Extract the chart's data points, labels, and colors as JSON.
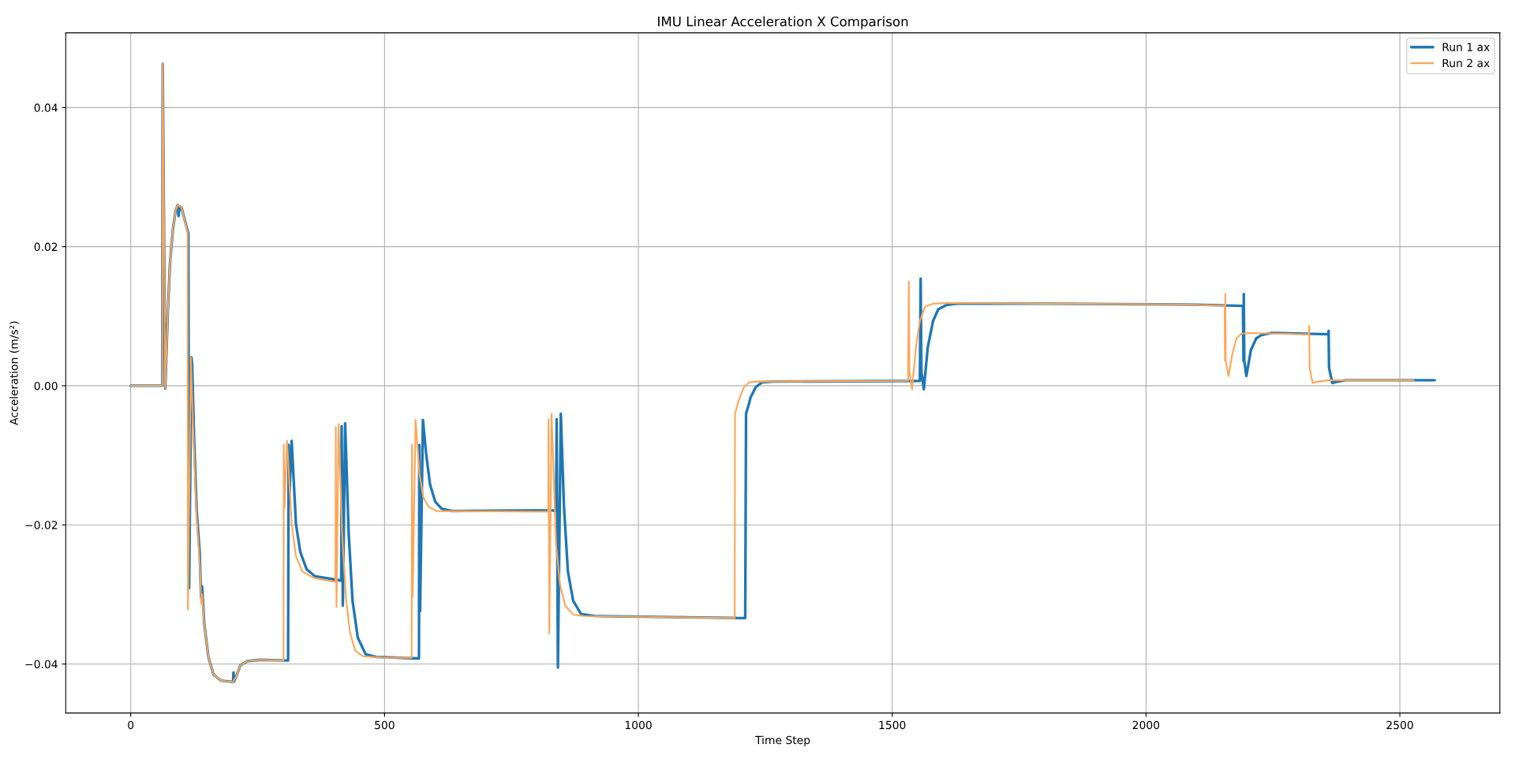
{
  "chart_data": {
    "type": "line",
    "title": "IMU Linear Acceleration X Comparison",
    "xlabel": "Time Step",
    "ylabel": "Acceleration (m/s²)",
    "xlim": [
      -128,
      2697
    ],
    "xticks": [
      0,
      500,
      1000,
      1500,
      2000,
      2500
    ],
    "ylim": [
      -0.04705,
      0.05075
    ],
    "yticks": [
      {
        "value": -0.04,
        "label": "−0.04"
      },
      {
        "value": -0.02,
        "label": "−0.02"
      },
      {
        "value": 0.0,
        "label": "0.00"
      },
      {
        "value": 0.02,
        "label": "0.02"
      },
      {
        "value": 0.04,
        "label": "0.04"
      }
    ],
    "grid": true,
    "legend": "top right",
    "line_style": "solid",
    "series": [
      {
        "name": "Run 1 ax",
        "color": "#1f77b4",
        "x": [
          0,
          62,
          63,
          68,
          73.2,
          77.4,
          83.2,
          88.3,
          92.5,
          94.2,
          96.7,
          100.1,
          112.7,
          113.5,
          115,
          119.5,
          121,
          125,
          130,
          136,
          138.5,
          140.5,
          144.7,
          153,
          163,
          178,
          201.5,
          202.5,
          203.5,
          207.7,
          216,
          229,
          254,
          310,
          311,
          312,
          317,
          325.5,
          334,
          346.6,
          363.4,
          414.7,
          415.5,
          417.8,
          422.4,
          429.2,
          436.9,
          447.3,
          462.8,
          483.5,
          567.8,
          568.5,
          570,
          575.6,
          581.8,
          589.6,
          600,
          612.9,
          633.5,
          837.9,
          839,
          841.5,
          847.2,
          853.4,
          861.2,
          871.5,
          887,
          913,
          1210.5,
          1212.1,
          1218.3,
          1220.8,
          1231.1,
          1244,
          1264.8,
          1554.5,
          1556.1,
          1557.5,
          1562.3,
          1570,
          1580.4,
          1590.7,
          1606.3,
          1627,
          1800,
          2072,
          2191,
          2192,
          2192.6,
          2193.5,
          2197.7,
          2206.5,
          2216.9,
          2227.2,
          2248,
          2359.2,
          2359.7,
          2360.5,
          2366.9,
          2377.3,
          2392.8,
          2568.7
        ],
        "values": [
          0,
          0,
          0.0463,
          -0.0004,
          0.0109,
          0.0177,
          0.0226,
          0.0251,
          0.026,
          0.0244,
          0.0258,
          0.0256,
          0.0221,
          0.022,
          -0.0291,
          0.0041,
          0.003,
          -0.008,
          -0.018,
          -0.0242,
          -0.0304,
          -0.0288,
          -0.0341,
          -0.039,
          -0.0415,
          -0.0424,
          -0.0426,
          -0.0412,
          -0.0425,
          -0.0418,
          -0.0402,
          -0.0396,
          -0.0394,
          -0.0395,
          -0.0085,
          -0.017,
          -0.0079,
          -0.0199,
          -0.0239,
          -0.0264,
          -0.0274,
          -0.028,
          -0.0058,
          -0.0316,
          -0.0054,
          -0.021,
          -0.0309,
          -0.0362,
          -0.0386,
          -0.039,
          -0.0392,
          -0.0085,
          -0.0324,
          -0.0049,
          -0.0097,
          -0.0142,
          -0.0167,
          -0.0177,
          -0.018,
          -0.0179,
          -0.0048,
          -0.0405,
          -0.004,
          -0.0173,
          -0.0267,
          -0.0309,
          -0.0328,
          -0.0331,
          -0.0334,
          -0.004,
          -0.0025,
          -0.0017,
          -0.0002,
          0.0005,
          0.0006,
          0.0007,
          0.0154,
          0.002,
          -0.0005,
          0.0055,
          0.0093,
          0.011,
          0.0116,
          0.0118,
          0.0118,
          0.0117,
          0.0115,
          0.0036,
          0.0132,
          0.0036,
          0.0014,
          0.0051,
          0.0068,
          0.0073,
          0.0076,
          0.0074,
          0.0079,
          0.0026,
          0.0004,
          0.0006,
          0.0008,
          0.0008
        ]
      },
      {
        "name": "Run 2 ax",
        "color": "#ffa556",
        "x": [
          0,
          62,
          63,
          68,
          73.2,
          77.4,
          83.2,
          88.3,
          92.5,
          96.7,
          100.1,
          112,
          112.7,
          118.5,
          121,
          125,
          130,
          136,
          138.8,
          140.5,
          144.7,
          153,
          163,
          178,
          201.5,
          207.7,
          216,
          229,
          254,
          301,
          301.5,
          303,
          307.9,
          317.1,
          325.5,
          338.2,
          355,
          364.5,
          403.3,
          404,
          405.3,
          409.5,
          416.2,
          424,
          431.8,
          442.1,
          457.6,
          499,
          553.4,
          554,
          555.4,
          561.1,
          568.9,
          576.6,
          587,
          602.5,
          822.4,
          823,
          824.5,
          829.1,
          837.9,
          845.7,
          856,
          871.5,
          892.2,
          1189.8,
          1190.5,
          1197.5,
          1207.9,
          1218.2,
          1233.7,
          1531.2,
          1532.8,
          1534,
          1539,
          1546.8,
          1554.5,
          1564.9,
          1580.4,
          1606,
          1800,
          2072,
          2154.8,
          2155.5,
          2156.3,
          2157,
          2162.5,
          2170.3,
          2178.1,
          2188.4,
          2206.5,
          2320.4,
          2321.4,
          2322.3,
          2328.1,
          2338.5,
          2361.7,
          2527.3
        ],
        "values": [
          0,
          0,
          0.0463,
          -0.0004,
          0.0109,
          0.0177,
          0.0226,
          0.0251,
          0.026,
          0.0258,
          0.0256,
          0.0221,
          -0.0322,
          0.0041,
          -0.002,
          -0.01,
          -0.019,
          -0.0255,
          -0.0313,
          -0.03,
          -0.0341,
          -0.039,
          -0.0415,
          -0.0424,
          -0.0426,
          -0.0418,
          -0.0402,
          -0.0396,
          -0.0394,
          -0.0395,
          -0.0085,
          -0.0175,
          -0.0079,
          -0.0199,
          -0.0245,
          -0.0267,
          -0.0274,
          -0.0277,
          -0.0282,
          -0.0059,
          -0.0318,
          -0.0055,
          -0.021,
          -0.0305,
          -0.0354,
          -0.0381,
          -0.0389,
          -0.0391,
          -0.0391,
          -0.0085,
          -0.0303,
          -0.0049,
          -0.0127,
          -0.0161,
          -0.0174,
          -0.018,
          -0.0181,
          -0.0048,
          -0.0356,
          -0.004,
          -0.0229,
          -0.0286,
          -0.0316,
          -0.0329,
          -0.0331,
          -0.0334,
          -0.004,
          -0.0021,
          -0.0002,
          0.0005,
          0.0006,
          0.0007,
          0.015,
          0.002,
          -0.0005,
          0.0055,
          0.0093,
          0.0114,
          0.0118,
          0.0119,
          0.0118,
          0.0117,
          0.0115,
          0.0036,
          0.0132,
          0.0036,
          0.0014,
          0.0047,
          0.0068,
          0.0075,
          0.0076,
          0.0074,
          0.0086,
          0.0026,
          0.0004,
          0.0006,
          0.0008,
          0.0008
        ]
      }
    ]
  }
}
